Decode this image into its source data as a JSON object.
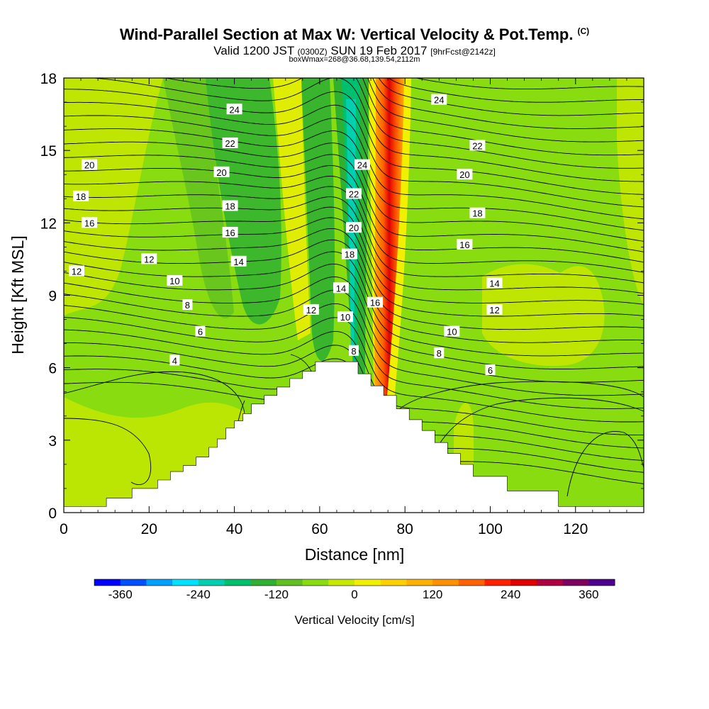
{
  "title": {
    "main": "Wind-Parallel Section at Max W: Vertical Velocity & Pot.Temp.",
    "copyright": "(C)",
    "valid_a": "Valid 1200 JST",
    "valid_z": "(0300Z)",
    "valid_b": "SUN 19 Feb 2017",
    "fcst": "[9hrFcst@2142z]",
    "box": "boxWmax=268@36.68,139.54,2112m"
  },
  "chart_data": {
    "type": "heatmap",
    "xlabel": "Distance [nm]",
    "ylabel": "Height [Kft MSL]",
    "xlim": [
      0,
      136
    ],
    "ylim": [
      0,
      18
    ],
    "xticks": [
      0,
      20,
      40,
      60,
      80,
      100,
      120
    ],
    "yticks": [
      0,
      3,
      6,
      9,
      12,
      15,
      18
    ],
    "grid": false,
    "fill_variable": "Vertical Velocity [cm/s]",
    "colorbar": {
      "label": "Vertical Velocity [cm/s]",
      "ticks": [
        -360,
        -240,
        -120,
        0,
        120,
        240,
        360
      ],
      "colors": [
        "#0000ff",
        "#0050ff",
        "#00a0ff",
        "#00e0ff",
        "#00d0b0",
        "#00c070",
        "#30b030",
        "#60c020",
        "#88dc10",
        "#c8e800",
        "#f0f000",
        "#ffd000",
        "#ffb000",
        "#ff9000",
        "#ff6000",
        "#ff2000",
        "#e00000",
        "#b00040",
        "#800060",
        "#500090"
      ]
    },
    "dominant_fill": "#88dc10",
    "terrain": {
      "x": [
        0,
        10,
        10,
        16,
        16,
        22,
        22,
        25,
        25,
        28,
        28,
        31,
        31,
        34,
        34,
        36,
        36,
        38,
        38,
        40,
        40,
        42,
        42,
        44,
        44,
        47,
        47,
        50,
        50,
        53,
        53,
        56,
        56,
        59,
        59,
        62,
        62,
        69,
        69,
        72,
        72,
        75,
        75,
        78,
        78,
        81,
        81,
        84,
        84,
        87,
        87,
        90,
        90,
        93,
        93,
        96,
        96,
        104,
        104,
        116,
        116,
        136,
        136
      ],
      "y": [
        0.25,
        0.25,
        0.6,
        0.6,
        1.0,
        1.0,
        1.35,
        1.35,
        1.7,
        1.7,
        1.95,
        1.95,
        2.3,
        2.3,
        2.7,
        2.7,
        3.05,
        3.05,
        3.5,
        3.5,
        3.8,
        3.8,
        4.1,
        4.1,
        4.5,
        4.5,
        4.85,
        4.85,
        5.2,
        5.2,
        5.55,
        5.55,
        5.85,
        5.85,
        6.25,
        6.25,
        6.25,
        6.25,
        5.75,
        5.75,
        5.25,
        5.25,
        4.85,
        4.85,
        4.3,
        4.3,
        3.85,
        3.85,
        3.4,
        3.4,
        2.9,
        2.9,
        2.45,
        2.45,
        2.0,
        2.0,
        1.5,
        1.5,
        0.9,
        0.9,
        0.25,
        0.25,
        0
      ]
    },
    "theta_labels": [
      {
        "text": "24",
        "x": 40,
        "y": 16.7
      },
      {
        "text": "22",
        "x": 39,
        "y": 15.3
      },
      {
        "text": "20",
        "x": 37,
        "y": 14.1
      },
      {
        "text": "18",
        "x": 39,
        "y": 12.7
      },
      {
        "text": "16",
        "x": 39,
        "y": 11.6
      },
      {
        "text": "14",
        "x": 41,
        "y": 10.4
      },
      {
        "text": "12",
        "x": 20,
        "y": 10.5
      },
      {
        "text": "10",
        "x": 26,
        "y": 9.6
      },
      {
        "text": "8",
        "x": 29,
        "y": 8.6
      },
      {
        "text": "6",
        "x": 32,
        "y": 7.5
      },
      {
        "text": "4",
        "x": 26,
        "y": 6.3
      },
      {
        "text": "20",
        "x": 6,
        "y": 14.4
      },
      {
        "text": "18",
        "x": 4,
        "y": 13.1
      },
      {
        "text": "16",
        "x": 6,
        "y": 12.0
      },
      {
        "text": "12",
        "x": 3,
        "y": 10.0
      },
      {
        "text": "12",
        "x": 58,
        "y": 8.4
      },
      {
        "text": "24",
        "x": 70,
        "y": 14.4
      },
      {
        "text": "22",
        "x": 68,
        "y": 13.2
      },
      {
        "text": "20",
        "x": 68,
        "y": 11.8
      },
      {
        "text": "18",
        "x": 67,
        "y": 10.7
      },
      {
        "text": "14",
        "x": 65,
        "y": 9.3
      },
      {
        "text": "10",
        "x": 66,
        "y": 8.1
      },
      {
        "text": "8",
        "x": 68,
        "y": 6.7
      },
      {
        "text": "16",
        "x": 73,
        "y": 8.7
      },
      {
        "text": "24",
        "x": 88,
        "y": 17.1
      },
      {
        "text": "22",
        "x": 97,
        "y": 15.2
      },
      {
        "text": "20",
        "x": 94,
        "y": 14.0
      },
      {
        "text": "18",
        "x": 97,
        "y": 12.4
      },
      {
        "text": "16",
        "x": 94,
        "y": 11.1
      },
      {
        "text": "14",
        "x": 101,
        "y": 9.5
      },
      {
        "text": "12",
        "x": 101,
        "y": 8.4
      },
      {
        "text": "10",
        "x": 91,
        "y": 7.5
      },
      {
        "text": "8",
        "x": 88,
        "y": 6.6
      },
      {
        "text": "6",
        "x": 100,
        "y": 5.9
      }
    ]
  }
}
